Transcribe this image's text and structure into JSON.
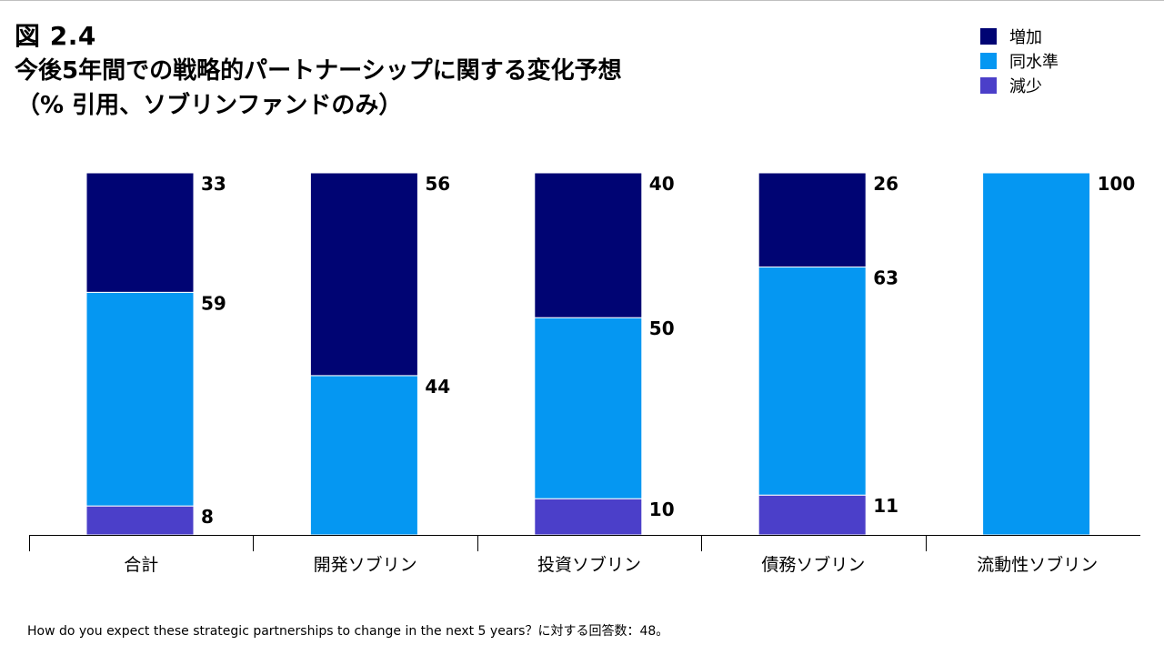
{
  "figure_label": "図 2.4",
  "title_line1": "今後5年間での戦略的パートナーシップに関する変化予想",
  "title_line2": "（% 引用、ソブリンファンドのみ）",
  "footnote": "How do you expect these strategic partnerships to change in the next 5 years？に対する回答数：48。",
  "colors": {
    "increase": "#000473",
    "same": "#0597F2",
    "decrease": "#4B3FC9"
  },
  "chart_data": {
    "type": "bar",
    "stacked": true,
    "title": "今後5年間での戦略的パートナーシップに関する変化予想（% 引用、ソブリンファンドのみ）",
    "categories": [
      "合計",
      "開発ソブリン",
      "投資ソブリン",
      "債務ソブリン",
      "流動性ソブリン"
    ],
    "series": [
      {
        "name": "減少",
        "key": "decrease",
        "values": [
          8,
          0,
          10,
          11,
          0
        ]
      },
      {
        "name": "同水準",
        "key": "same",
        "values": [
          59,
          44,
          50,
          63,
          100
        ]
      },
      {
        "name": "増加",
        "key": "increase",
        "values": [
          33,
          56,
          40,
          26,
          0
        ]
      }
    ],
    "ylim": [
      0,
      100
    ],
    "xlabel": "",
    "ylabel": "",
    "legend_position": "top-right",
    "legend_order": [
      "増加",
      "同水準",
      "減少"
    ],
    "grid": false
  }
}
